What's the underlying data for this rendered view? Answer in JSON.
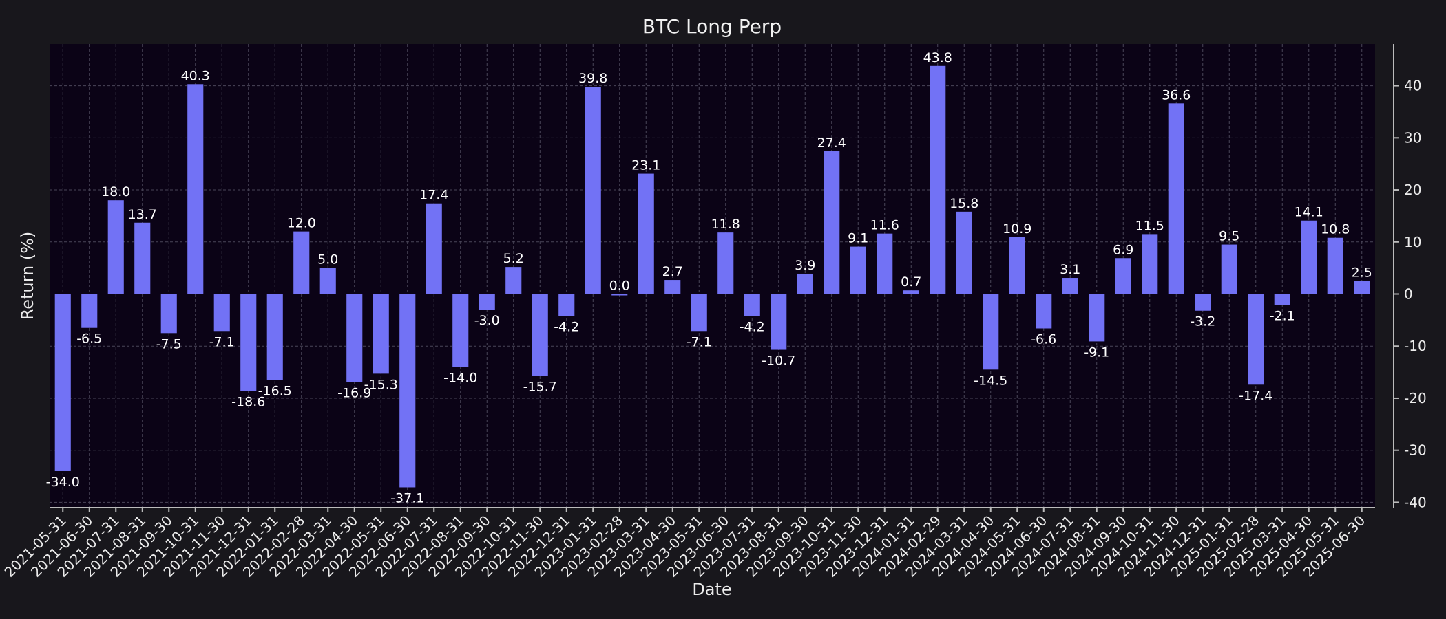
{
  "chart_data": {
    "type": "bar",
    "title": "BTC Long Perp",
    "xlabel": "Date",
    "ylabel": "Return (%)",
    "ylim": [
      -41,
      48
    ],
    "yticks": [
      -40,
      -30,
      -20,
      -10,
      0,
      10,
      20,
      30,
      40
    ],
    "y_axis_side": "right",
    "grid": true,
    "colors": {
      "bar": "#7272f5",
      "plot_bg": "#0b0316",
      "page_bg": "#18171c",
      "grid": "#4a4658",
      "text": "#ececec"
    },
    "categories": [
      "2021-05-31",
      "2021-06-30",
      "2021-07-31",
      "2021-08-31",
      "2021-09-30",
      "2021-10-31",
      "2021-11-30",
      "2021-12-31",
      "2022-01-31",
      "2022-02-28",
      "2022-03-31",
      "2022-04-30",
      "2022-05-31",
      "2022-06-30",
      "2022-07-31",
      "2022-08-31",
      "2022-09-30",
      "2022-10-31",
      "2022-11-30",
      "2022-12-31",
      "2023-01-31",
      "2023-02-28",
      "2023-03-31",
      "2023-04-30",
      "2023-05-31",
      "2023-06-30",
      "2023-07-31",
      "2023-08-31",
      "2023-09-30",
      "2023-10-31",
      "2023-11-30",
      "2023-12-31",
      "2024-01-31",
      "2024-02-29",
      "2024-03-31",
      "2024-04-30",
      "2024-05-31",
      "2024-06-30",
      "2024-07-31",
      "2024-08-31",
      "2024-09-30",
      "2024-10-31",
      "2024-11-30",
      "2024-12-31",
      "2025-01-31",
      "2025-02-28",
      "2025-03-31",
      "2025-04-30",
      "2025-05-31",
      "2025-06-30"
    ],
    "values": [
      -34.0,
      -6.5,
      18.0,
      13.7,
      -7.5,
      40.3,
      -7.1,
      -18.6,
      -16.5,
      12.0,
      5.0,
      -16.9,
      -15.3,
      -37.1,
      17.4,
      -14.0,
      -3.0,
      5.2,
      -15.7,
      -4.2,
      39.8,
      0.0,
      23.1,
      2.7,
      -7.1,
      11.8,
      -4.2,
      -10.7,
      3.9,
      27.4,
      9.1,
      11.6,
      0.7,
      43.8,
      15.8,
      -14.5,
      10.9,
      -6.6,
      3.1,
      -9.1,
      6.9,
      11.5,
      36.6,
      -3.2,
      9.5,
      -17.4,
      -2.1,
      14.1,
      10.8,
      2.5
    ],
    "data_labels": [
      "-34.0",
      "-6.5",
      "18.0",
      "13.7",
      "-7.5",
      "40.3",
      "-7.1",
      "-18.6",
      "-16.5",
      "12.0",
      "5.0",
      "-16.9",
      "-15.3",
      "-37.1",
      "17.4",
      "-14.0",
      "-3.0",
      "5.2",
      "-15.7",
      "-4.2",
      "39.8",
      "0.0",
      "23.1",
      "2.7",
      "-7.1",
      "11.8",
      "-4.2",
      "-10.7",
      "3.9",
      "27.4",
      "9.1",
      "11.6",
      "0.7",
      "43.8",
      "15.8",
      "-14.5",
      "10.9",
      "-6.6",
      "3.1",
      "-9.1",
      "6.9",
      "11.5",
      "36.6",
      "-3.2",
      "9.5",
      "-17.4",
      "-2.1",
      "14.1",
      "10.8",
      "2.5"
    ]
  }
}
